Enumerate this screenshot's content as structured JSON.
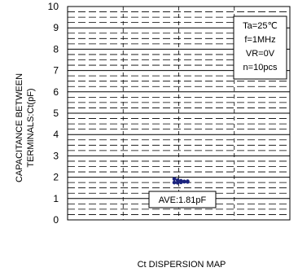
{
  "chart_data": {
    "type": "scatter",
    "title": "",
    "caption": "Ct DISPERSION MAP",
    "xlabel": "",
    "ylabel_line1": "CAPACITANCE BETWEEN",
    "ylabel_line2": "TERMINALS:Ct(pF)",
    "ylim": [
      0,
      10
    ],
    "y_major_step": 1,
    "y_minor_step": 0.25,
    "yticks": [
      "0",
      "1",
      "2",
      "3",
      "4",
      "5",
      "6",
      "7",
      "8",
      "9",
      "10"
    ],
    "grid": {
      "major": "solid",
      "minor": "dashed",
      "vertical": "dashed",
      "vertical_lines": 3
    },
    "conditions": [
      "Ta=25℃",
      "f=1MHz",
      "VR=0V",
      "n=10pcs"
    ],
    "conditions_position": "top-right",
    "annotation": "AVE:1.81pF",
    "series": [
      {
        "color": "#1a237e",
        "points": [
          {
            "x": 0.48,
            "y": 1.92
          },
          {
            "x": 0.495,
            "y": 1.86
          },
          {
            "x": 0.51,
            "y": 1.83
          },
          {
            "x": 0.525,
            "y": 1.8
          },
          {
            "x": 0.54,
            "y": 1.78
          },
          {
            "x": 0.48,
            "y": 1.75
          },
          {
            "x": 0.495,
            "y": 1.74
          },
          {
            "x": 0.51,
            "y": 1.76
          },
          {
            "x": 0.525,
            "y": 1.79
          },
          {
            "x": 0.54,
            "y": 1.81
          }
        ]
      }
    ]
  }
}
